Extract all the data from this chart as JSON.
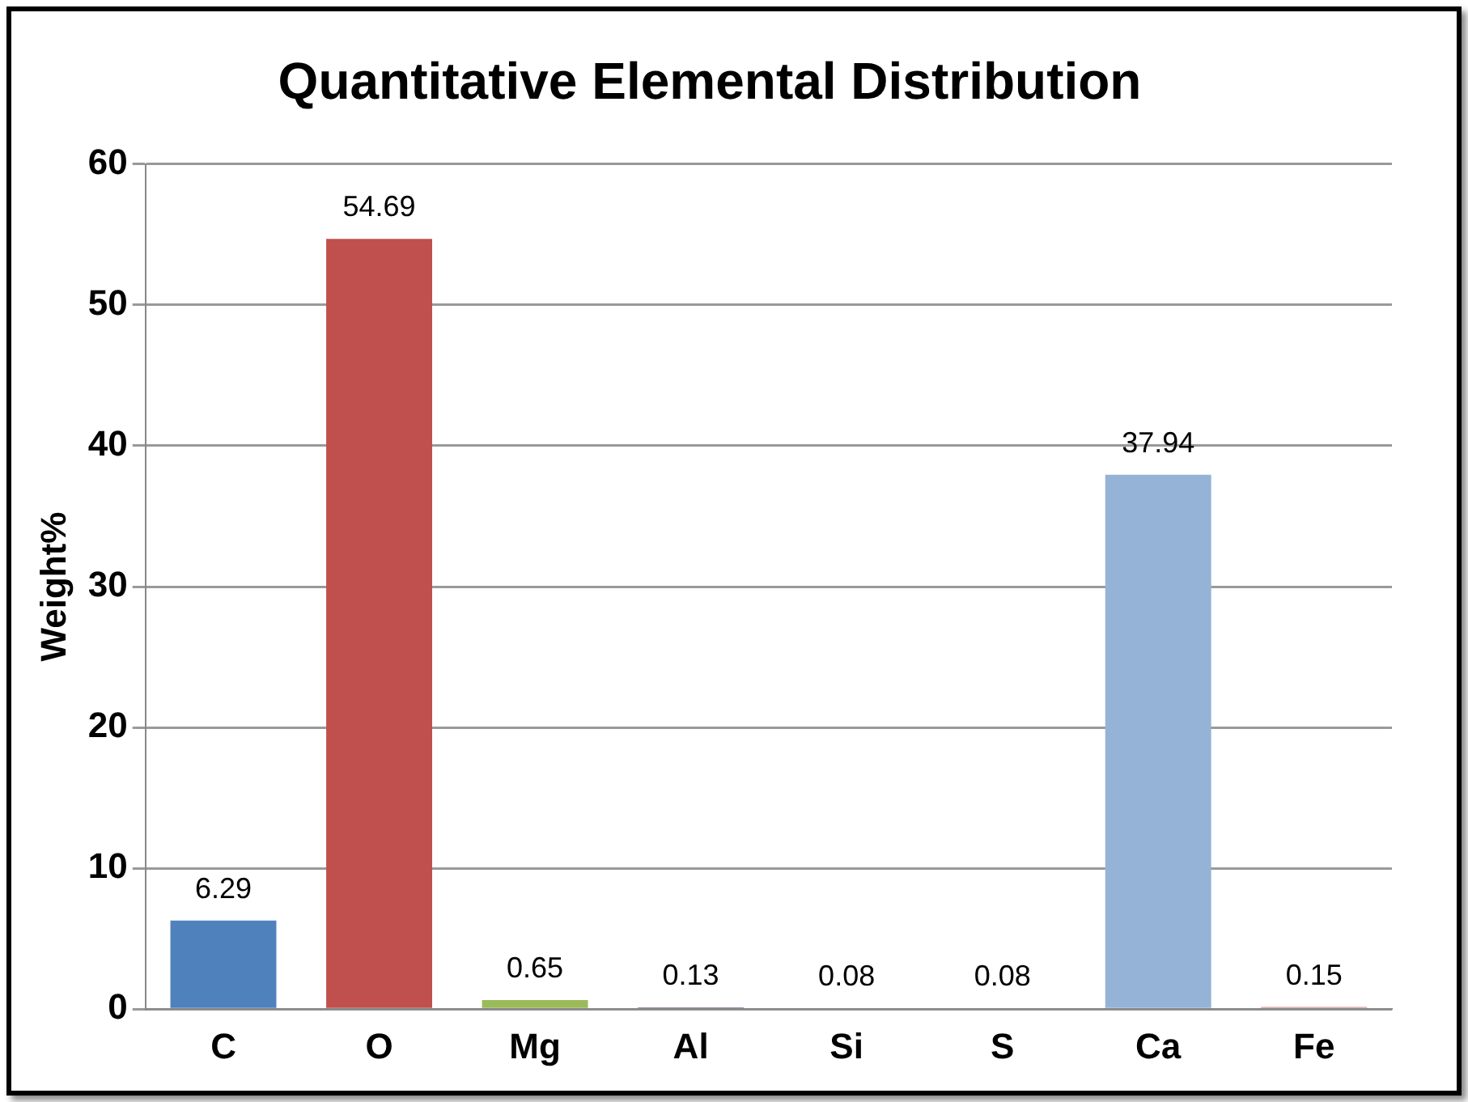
{
  "chart_data": {
    "type": "bar",
    "title": "Quantitative Elemental Distribution",
    "ylabel": "Weight%",
    "categories": [
      "C",
      "O",
      "Mg",
      "Al",
      "Si",
      "S",
      "Ca",
      "Fe"
    ],
    "values": [
      6.29,
      54.69,
      0.65,
      0.13,
      0.08,
      0.08,
      37.94,
      0.15
    ],
    "colors": [
      "#4f81bd",
      "#c0504d",
      "#9bbb59",
      "#8064a2",
      "#4bacc6",
      "#f79646",
      "#95b3d7",
      "#d99694"
    ],
    "ylim": [
      0,
      60
    ],
    "yticks": [
      0,
      10,
      20,
      30,
      40,
      50,
      60
    ],
    "grid": "y",
    "legend": false,
    "data_labels": true
  }
}
